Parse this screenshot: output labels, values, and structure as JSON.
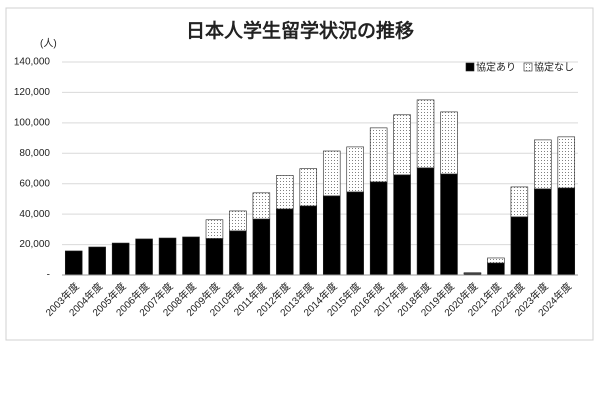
{
  "chart_data": {
    "type": "stacked_bar",
    "title": "日本人学生留学状況の推移",
    "y_label": "(人)",
    "categories": [
      "2003年度",
      "2004年度",
      "2005年度",
      "2006年度",
      "2007年度",
      "2008年度",
      "2009年度",
      "2010年度",
      "2011年度",
      "2012年度",
      "2013年度",
      "2014年度",
      "2015年度",
      "2016年度",
      "2017年度",
      "2018年度",
      "2019年度",
      "2020年度",
      "2021年度",
      "2022年度",
      "2023年度",
      "2024年度"
    ],
    "series": [
      {
        "name": "協定あり",
        "color": "#000000",
        "values": [
          15800,
          18400,
          21000,
          23700,
          24300,
          25000,
          24000,
          29000,
          36800,
          43400,
          45400,
          52000,
          54600,
          61200,
          65800,
          70400,
          66400,
          1000,
          7900,
          38200,
          56600,
          57200
        ]
      },
      {
        "name": "協定なし",
        "color": "#808080",
        "values": [
          null,
          null,
          null,
          null,
          null,
          null,
          12300,
          13100,
          17200,
          22000,
          24500,
          29500,
          29600,
          35500,
          39500,
          44700,
          40800,
          500,
          3300,
          19700,
          32200,
          33600
        ]
      }
    ],
    "ylim": [
      0,
      140000
    ],
    "yticks": [
      {
        "value": 0,
        "label": "-"
      },
      {
        "value": 20000,
        "label": "20,000"
      },
      {
        "value": 40000,
        "label": "40,000"
      },
      {
        "value": 60000,
        "label": "60,000"
      },
      {
        "value": 80000,
        "label": "80,000"
      },
      {
        "value": 100000,
        "label": "100,000"
      },
      {
        "value": 120000,
        "label": "120,000"
      },
      {
        "value": 140000,
        "label": "140,000"
      }
    ],
    "grid": true,
    "legend": "top-right"
  }
}
